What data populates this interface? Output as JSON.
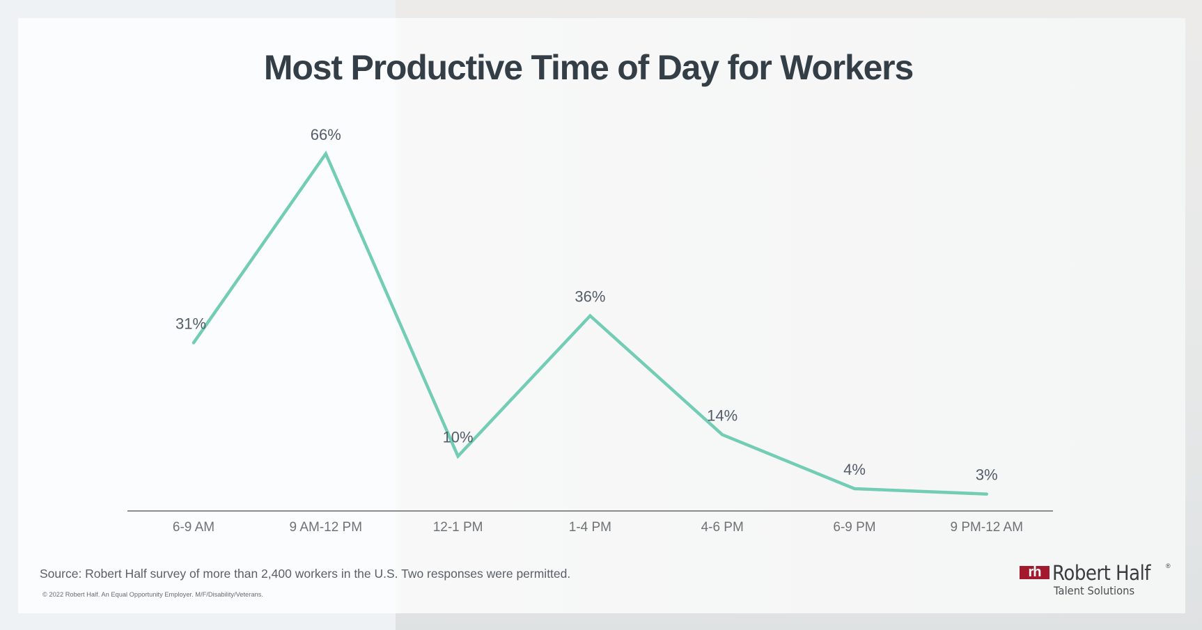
{
  "title": "Most Productive Time of Day for Workers",
  "chart_data": {
    "type": "line",
    "title": "Most Productive Time of Day for Workers",
    "xlabel": "",
    "ylabel": "",
    "categories": [
      "6-9 AM",
      "9 AM-12 PM",
      "12-1 PM",
      "1-4 PM",
      "4-6 PM",
      "6-9 PM",
      "9 PM-12 AM"
    ],
    "values": [
      31,
      66,
      10,
      36,
      14,
      4,
      3
    ],
    "data_labels": [
      "31%",
      "66%",
      "10%",
      "36%",
      "14%",
      "4%",
      "3%"
    ],
    "unit": "%",
    "ylim": [
      0,
      70
    ],
    "grid": false,
    "legend": null,
    "line_color": "#72cdb4",
    "axis_color": "#8a8c8e"
  },
  "footer": {
    "source": "Source: Robert Half survey of more than 2,400 workers in the U.S. Two responses were permitted.",
    "copyright": "© 2022 Robert Half. An Equal Opportunity Employer. M/F/Disability/Veterans."
  },
  "logo": {
    "mark": "rh",
    "name": "Robert Half",
    "registered": "®",
    "tagline": "Talent Solutions",
    "brand_color": "#a3192d"
  }
}
